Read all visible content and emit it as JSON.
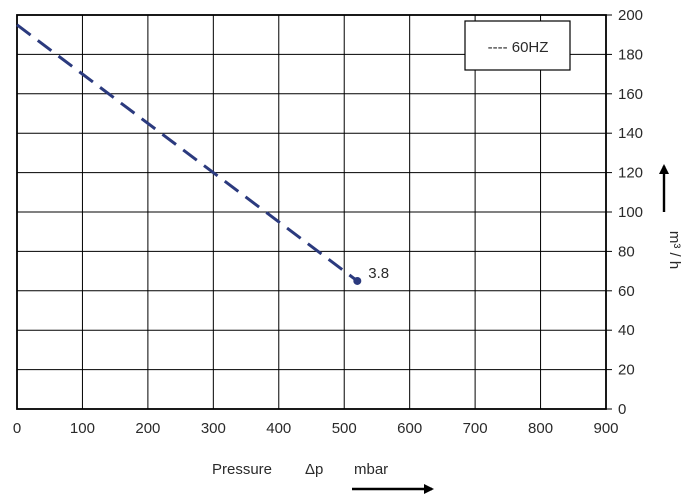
{
  "chart_data": {
    "type": "line",
    "title": "",
    "xlabel": "Pressure",
    "xlabel_symbol": "Δp",
    "xlabel_unit": "mbar",
    "ylabel": "m³ / h",
    "xlim": [
      0,
      900
    ],
    "ylim": [
      0,
      200
    ],
    "x_ticks": [
      0,
      100,
      200,
      300,
      400,
      500,
      600,
      700,
      800,
      900
    ],
    "y_ticks": [
      0,
      20,
      40,
      60,
      80,
      100,
      120,
      140,
      160,
      180,
      200
    ],
    "grid": true,
    "y_axis_side": "right",
    "legend_position": "top-right",
    "series": [
      {
        "name": "60HZ",
        "legend_label": "---- 60HZ",
        "style": "dashed",
        "color": "#2b3a7e",
        "x": [
          0,
          520
        ],
        "y": [
          195,
          65
        ],
        "end_label": "3.8"
      }
    ]
  }
}
